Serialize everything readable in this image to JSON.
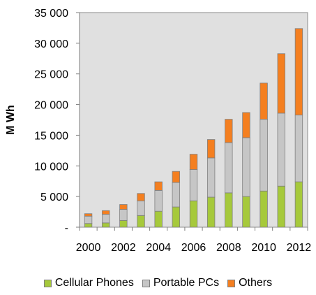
{
  "chart_data": {
    "type": "bar",
    "stacked": true,
    "ylabel": "M Wh",
    "xlabel": "",
    "ylim": [
      0,
      35000
    ],
    "y_ticks": [
      {
        "value": 0,
        "label": "-"
      },
      {
        "value": 5000,
        "label": "5 000"
      },
      {
        "value": 10000,
        "label": "10 000"
      },
      {
        "value": 15000,
        "label": "15 000"
      },
      {
        "value": 20000,
        "label": "20 000"
      },
      {
        "value": 25000,
        "label": "25 000"
      },
      {
        "value": 30000,
        "label": "30 000"
      },
      {
        "value": 35000,
        "label": "35 000"
      }
    ],
    "categories": [
      "2000",
      "2001",
      "2002",
      "2003",
      "2004",
      "2005",
      "2006",
      "2007",
      "2008",
      "2009",
      "2010",
      "2011",
      "2012"
    ],
    "x_tick_labels": [
      "2000",
      "",
      "2002",
      "",
      "2004",
      "",
      "2006",
      "",
      "2008",
      "",
      "2010",
      "",
      "2012"
    ],
    "grid": false,
    "legend_position": "bottom",
    "plot_background": "#e0e0e0",
    "series": [
      {
        "name": "Cellular Phones",
        "color": "#a6c93b",
        "values": [
          600,
          700,
          1100,
          1900,
          2600,
          3300,
          4300,
          4900,
          5600,
          5000,
          5900,
          6700,
          7400
        ]
      },
      {
        "name": "Portable PCs",
        "color": "#c6c6c6",
        "values": [
          1200,
          1400,
          1800,
          2400,
          3400,
          4000,
          5100,
          6400,
          8200,
          9600,
          11700,
          11900,
          10900
        ]
      },
      {
        "name": "Others",
        "color": "#f47f20",
        "values": [
          400,
          600,
          800,
          1200,
          1400,
          1800,
          2500,
          3000,
          3800,
          4100,
          5900,
          9700,
          14100
        ]
      }
    ]
  }
}
